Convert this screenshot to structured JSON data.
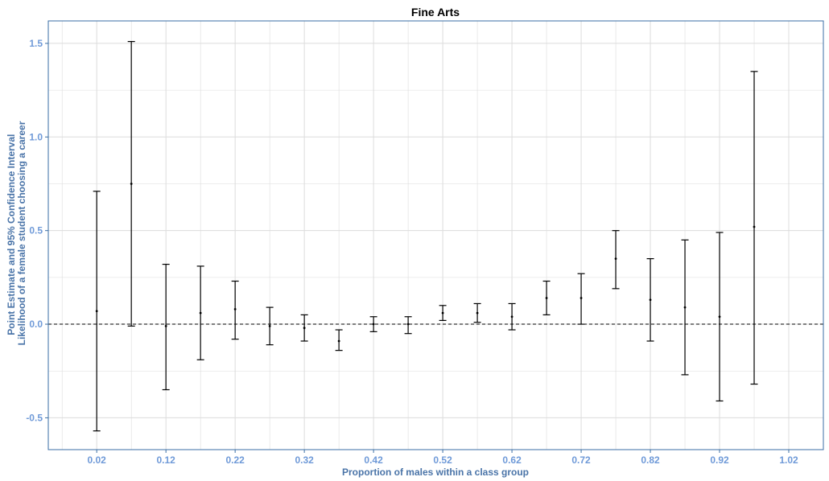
{
  "chart_data": {
    "type": "errorbar",
    "title": "Fine Arts",
    "xlabel": "Proportion of males within a class group",
    "ylabel_line1": "Point Estimate and 95% Confidence Interval",
    "ylabel_line2": "Likelihood of a female student choosing a career",
    "xlim": [
      -0.05,
      1.07
    ],
    "ylim": [
      -0.67,
      1.62
    ],
    "x_ticks": [
      0.02,
      0.12,
      0.22,
      0.32,
      0.42,
      0.52,
      0.62,
      0.72,
      0.82,
      0.92,
      1.02
    ],
    "x_tick_labels": [
      "0.02",
      "0.12",
      "0.22",
      "0.32",
      "0.42",
      "0.52",
      "0.62",
      "0.72",
      "0.82",
      "0.92",
      "1.02"
    ],
    "y_ticks": [
      -0.5,
      0.0,
      0.5,
      1.0,
      1.5
    ],
    "y_tick_labels": [
      "-0.5",
      "0.0",
      "0.5",
      "1.0",
      "1.5"
    ],
    "reference_line_y": 0,
    "grid": true,
    "points": [
      {
        "x": 0.02,
        "estimate": 0.07,
        "lower": -0.57,
        "upper": 0.71
      },
      {
        "x": 0.07,
        "estimate": 0.75,
        "lower": -0.01,
        "upper": 1.51
      },
      {
        "x": 0.12,
        "estimate": -0.01,
        "lower": -0.35,
        "upper": 0.32
      },
      {
        "x": 0.17,
        "estimate": 0.06,
        "lower": -0.19,
        "upper": 0.31
      },
      {
        "x": 0.22,
        "estimate": 0.08,
        "lower": -0.08,
        "upper": 0.23
      },
      {
        "x": 0.27,
        "estimate": -0.01,
        "lower": -0.11,
        "upper": 0.09
      },
      {
        "x": 0.32,
        "estimate": -0.02,
        "lower": -0.09,
        "upper": 0.05
      },
      {
        "x": 0.37,
        "estimate": -0.09,
        "lower": -0.14,
        "upper": -0.03
      },
      {
        "x": 0.42,
        "estimate": 0.0,
        "lower": -0.04,
        "upper": 0.04
      },
      {
        "x": 0.47,
        "estimate": 0.0,
        "lower": -0.05,
        "upper": 0.04
      },
      {
        "x": 0.52,
        "estimate": 0.06,
        "lower": 0.02,
        "upper": 0.1
      },
      {
        "x": 0.57,
        "estimate": 0.06,
        "lower": 0.01,
        "upper": 0.11
      },
      {
        "x": 0.62,
        "estimate": 0.04,
        "lower": -0.03,
        "upper": 0.11
      },
      {
        "x": 0.67,
        "estimate": 0.14,
        "lower": 0.05,
        "upper": 0.23
      },
      {
        "x": 0.72,
        "estimate": 0.14,
        "lower": 0.0,
        "upper": 0.27
      },
      {
        "x": 0.77,
        "estimate": 0.35,
        "lower": 0.19,
        "upper": 0.5
      },
      {
        "x": 0.82,
        "estimate": 0.13,
        "lower": -0.09,
        "upper": 0.35
      },
      {
        "x": 0.87,
        "estimate": 0.09,
        "lower": -0.27,
        "upper": 0.45
      },
      {
        "x": 0.92,
        "estimate": 0.04,
        "lower": -0.41,
        "upper": 0.49
      },
      {
        "x": 0.97,
        "estimate": 0.52,
        "lower": -0.32,
        "upper": 1.35
      }
    ],
    "colors": {
      "panel_border": "#3a6ea5",
      "grid": "#dcdcdc",
      "tick_label": "#6f9ad8",
      "axis_title": "#4a74a8",
      "marks": "#000000"
    }
  }
}
